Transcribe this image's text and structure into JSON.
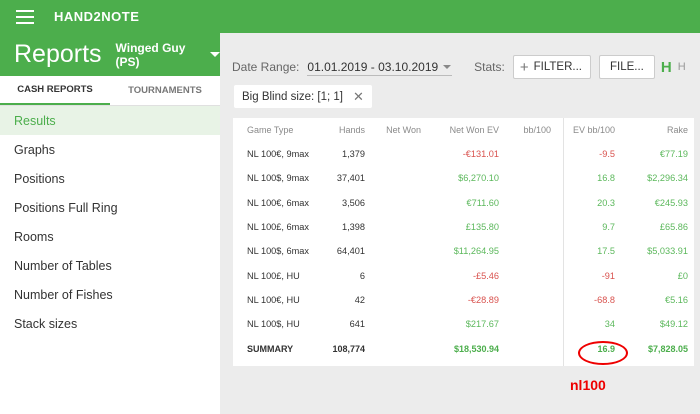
{
  "app": {
    "name": "HAND2NOTE"
  },
  "header": {
    "title": "Reports",
    "account": "Winged Guy (PS)"
  },
  "tabs": [
    {
      "label": "CASH REPORTS",
      "active": true
    },
    {
      "label": "TOURNAMENTS",
      "active": false
    }
  ],
  "sidebar": {
    "items": [
      {
        "label": "Results",
        "active": true
      },
      {
        "label": "Graphs"
      },
      {
        "label": "Positions"
      },
      {
        "label": "Positions Full Ring"
      },
      {
        "label": "Rooms"
      },
      {
        "label": "Number of Tables"
      },
      {
        "label": "Number of Fishes"
      },
      {
        "label": "Stack sizes"
      }
    ]
  },
  "filters": {
    "date_label": "Date Range:",
    "date_value": "01.01.2019 - 03.10.2019",
    "stats_label": "Stats:",
    "filter_button": "FILTER...",
    "file_button": "FILE...",
    "chip": "Big Blind size: [1; 1]"
  },
  "table": {
    "columns": [
      "Game Type",
      "Hands",
      "Net Won",
      "Net Won  EV",
      "bb/100",
      "EV bb/100",
      "Rake"
    ],
    "rows": [
      [
        "NL 100€, 9max",
        "1,379",
        "",
        "-€131.01",
        "",
        "-9.5",
        "€77.19"
      ],
      [
        "NL 100$, 9max",
        "37,401",
        "",
        "$6,270.10",
        "",
        "16.8",
        "$2,296.34"
      ],
      [
        "NL 100€, 6max",
        "3,506",
        "",
        "€711.60",
        "",
        "20.3",
        "€245.93"
      ],
      [
        "NL 100£, 6max",
        "1,398",
        "",
        "£135.80",
        "",
        "9.7",
        "£65.86"
      ],
      [
        "NL 100$, 6max",
        "64,401",
        "",
        "$11,264.95",
        "",
        "17.5",
        "$5,033.91"
      ],
      [
        "NL 100£, HU",
        "6",
        "",
        "-£5.46",
        "",
        "-91",
        "£0"
      ],
      [
        "NL 100€, HU",
        "42",
        "",
        "-€28.89",
        "",
        "-68.8",
        "€5.16"
      ],
      [
        "NL 100$, HU",
        "641",
        "",
        "$217.67",
        "",
        "34",
        "$49.12"
      ]
    ],
    "summary": [
      "SUMMARY",
      "108,774",
      "",
      "$18,530.94",
      "",
      "16.9",
      "$7,828.05"
    ]
  },
  "annotation": {
    "note": "nl100"
  },
  "colors": {
    "brand": "#4cae4c",
    "negative": "#d9534f",
    "positive": "#5cb85c",
    "annotation": "#e00000"
  }
}
